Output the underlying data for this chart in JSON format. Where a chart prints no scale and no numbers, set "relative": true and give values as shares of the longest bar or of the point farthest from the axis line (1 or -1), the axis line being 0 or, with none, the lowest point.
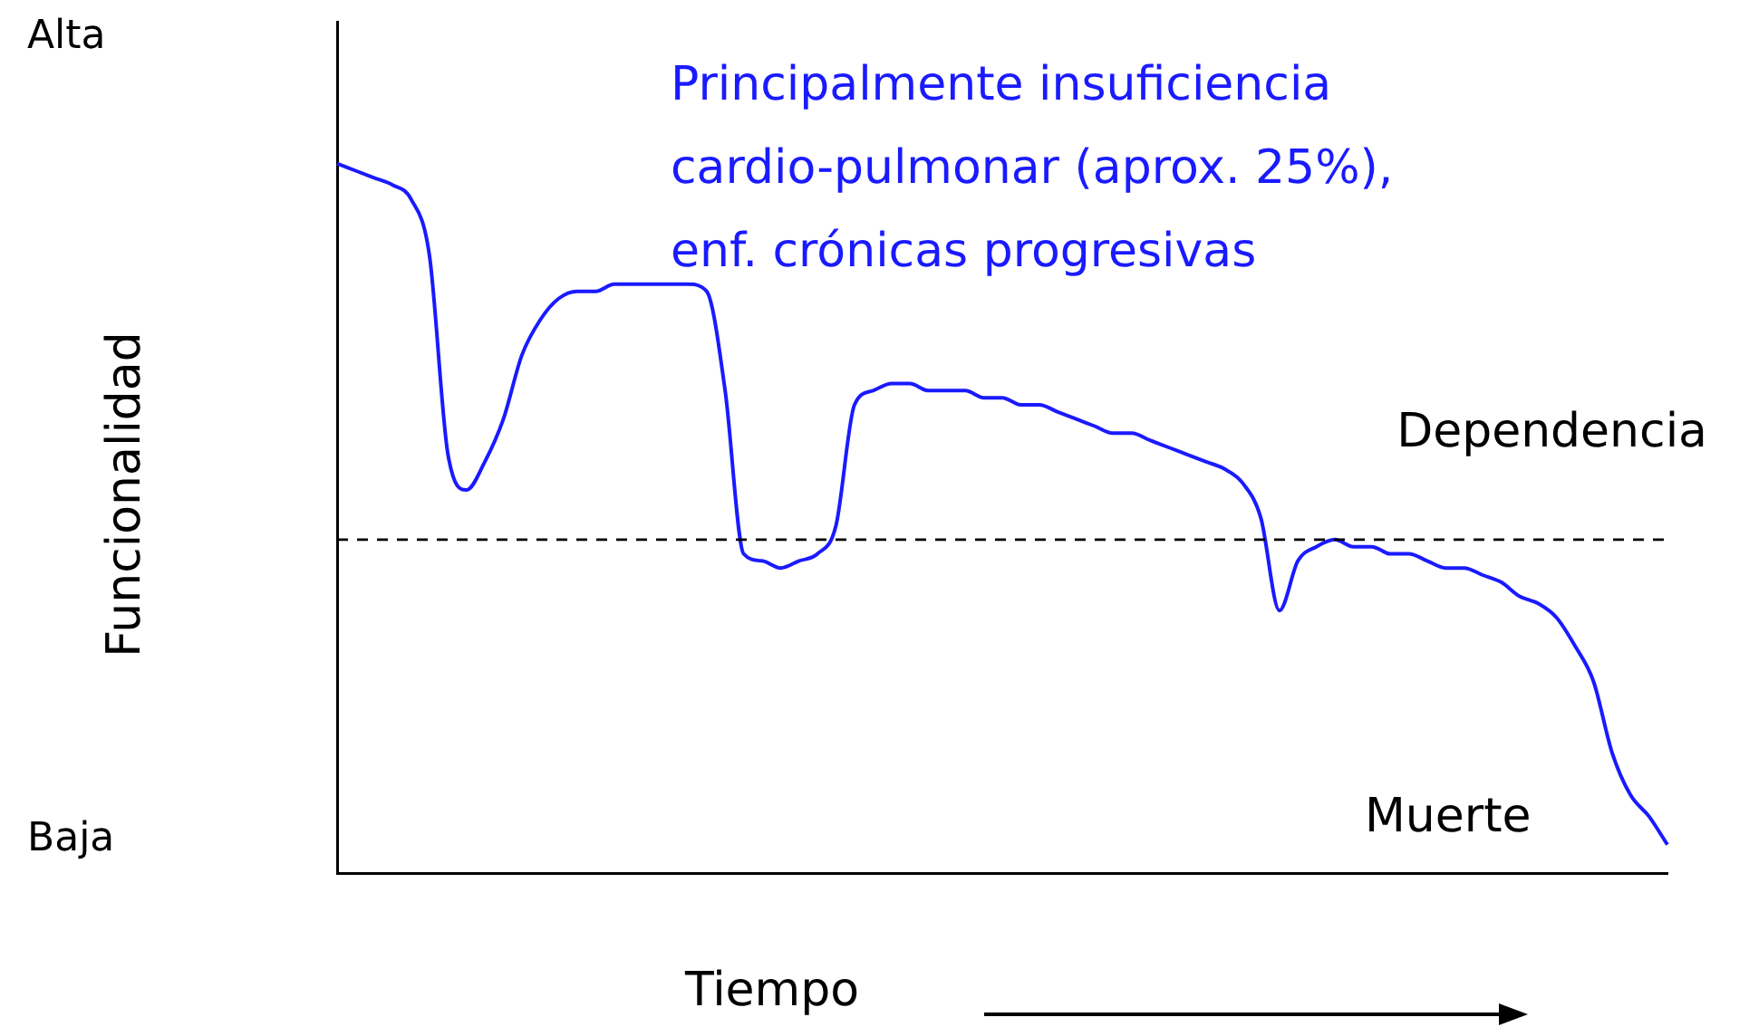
{
  "chart_data": {
    "type": "line",
    "relative": true,
    "xlabel": "Tiempo",
    "ylabel": "Funcionalidad",
    "categories": [
      null,
      null,
      null,
      null,
      null,
      null,
      null,
      null,
      null,
      null,
      null,
      null,
      null,
      null,
      null,
      null,
      null,
      null,
      null,
      null,
      null,
      null,
      null,
      null,
      null,
      null,
      null,
      null,
      null,
      null,
      null,
      null,
      null,
      null,
      null,
      null,
      null,
      null,
      null,
      null,
      null,
      null,
      null,
      null,
      null,
      null,
      null,
      null,
      null,
      null,
      null,
      null,
      null,
      null,
      null,
      null,
      null,
      null,
      null,
      null,
      null,
      null,
      null,
      null,
      null,
      null,
      null,
      null,
      null,
      null,
      null,
      null,
      null
    ],
    "series": [
      {
        "color": "#1a1aff",
        "values": [
          1.0,
          0.99,
          0.98,
          0.97,
          0.95,
          0.87,
          0.59,
          0.54,
          0.58,
          0.64,
          0.73,
          0.78,
          0.81,
          0.82,
          0.82,
          0.83,
          0.83,
          0.83,
          0.83,
          0.83,
          0.82,
          0.68,
          0.45,
          0.44,
          0.43,
          0.44,
          0.45,
          0.49,
          0.66,
          0.68,
          0.69,
          0.69,
          0.68,
          0.68,
          0.68,
          0.67,
          0.67,
          0.66,
          0.66,
          0.65,
          0.64,
          0.63,
          0.62,
          0.62,
          0.61,
          0.6,
          0.59,
          0.58,
          0.57,
          0.55,
          0.5,
          0.37,
          0.44,
          0.46,
          0.47,
          0.46,
          0.46,
          0.45,
          0.45,
          0.44,
          0.43,
          0.43,
          0.42,
          0.41,
          0.39,
          0.38,
          0.36,
          0.32,
          0.27,
          0.17,
          0.11,
          0.08,
          0.04
        ]
      }
    ],
    "ref_lines": [
      {
        "axis": "y",
        "value": 0.47,
        "label": "Dependencia",
        "line_style": "dashed",
        "color": "#000000"
      }
    ],
    "annotations": [
      "Principalmente insuficiencia\ncardio-pulmonar (aprox. 25%),\nenf. crónicas progresivas",
      "Muerte",
      "Alta",
      "Baja"
    ],
    "grid": false,
    "legend": false,
    "marker": "none",
    "line_style": "solid"
  }
}
